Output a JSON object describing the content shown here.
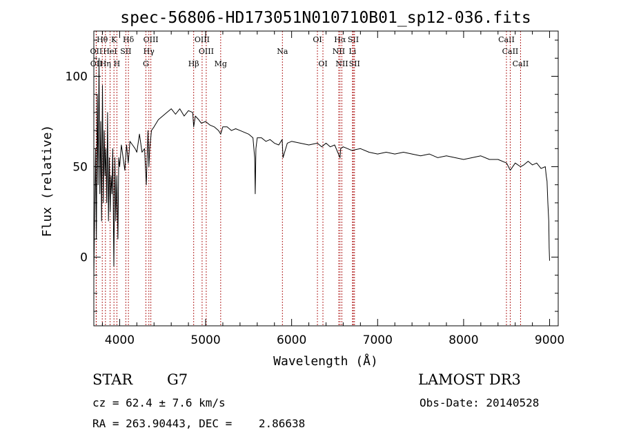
{
  "chart_data": {
    "type": "line",
    "title": "spec-56806-HD173051N010710B01_sp12-036.fits",
    "xlabel": "Wavelength (Å)",
    "ylabel": "Flux (relative)",
    "xlim": [
      3700,
      9100
    ],
    "ylim": [
      -38,
      125
    ],
    "x_ticks": [
      4000,
      5000,
      6000,
      7000,
      8000,
      9000
    ],
    "y_ticks": [
      0,
      50,
      100
    ],
    "x_tick_labels": [
      "4000",
      "5000",
      "6000",
      "7000",
      "8000",
      "9000"
    ],
    "y_tick_labels": [
      "0",
      "50",
      "100"
    ],
    "series": [
      {
        "name": "flux",
        "color": "#000000",
        "x": [
          3700,
          3720,
          3730,
          3740,
          3750,
          3760,
          3770,
          3780,
          3790,
          3800,
          3810,
          3820,
          3830,
          3840,
          3850,
          3860,
          3870,
          3880,
          3890,
          3900,
          3910,
          3920,
          3933,
          3945,
          3955,
          3968,
          3980,
          3990,
          4000,
          4020,
          4040,
          4060,
          4080,
          4100,
          4120,
          4150,
          4180,
          4200,
          4230,
          4260,
          4290,
          4310,
          4330,
          4340,
          4350,
          4370,
          4400,
          4450,
          4500,
          4550,
          4600,
          4650,
          4700,
          4750,
          4800,
          4850,
          4861,
          4880,
          4920,
          4950,
          5000,
          5050,
          5100,
          5150,
          5175,
          5200,
          5250,
          5300,
          5350,
          5400,
          5450,
          5500,
          5550,
          5570,
          5577,
          5585,
          5600,
          5650,
          5700,
          5750,
          5800,
          5850,
          5890,
          5900,
          5950,
          6000,
          6100,
          6200,
          6300,
          6350,
          6400,
          6450,
          6500,
          6563,
          6570,
          6600,
          6650,
          6700,
          6800,
          6900,
          7000,
          7100,
          7200,
          7300,
          7400,
          7500,
          7600,
          7700,
          7800,
          7900,
          8000,
          8100,
          8200,
          8300,
          8400,
          8500,
          8542,
          8600,
          8662,
          8700,
          8750,
          8800,
          8850,
          8900,
          8950,
          8960,
          8970,
          8980,
          8990,
          8995,
          9000
        ],
        "values": [
          -10,
          60,
          10,
          90,
          40,
          110,
          35,
          75,
          20,
          95,
          30,
          70,
          45,
          60,
          30,
          80,
          20,
          55,
          25,
          45,
          35,
          60,
          -5,
          55,
          20,
          45,
          10,
          55,
          50,
          62,
          55,
          48,
          62,
          52,
          64,
          62,
          60,
          58,
          68,
          58,
          60,
          40,
          70,
          50,
          60,
          70,
          72,
          76,
          78,
          80,
          82,
          79,
          82,
          78,
          81,
          80,
          72,
          78,
          76,
          74,
          75,
          73,
          72,
          70,
          68,
          72,
          72,
          70,
          71,
          70,
          69,
          68,
          66,
          55,
          35,
          60,
          66,
          66,
          64,
          65,
          63,
          62,
          65,
          55,
          63,
          64,
          63,
          62,
          63,
          61,
          63,
          61,
          62,
          55,
          60,
          61,
          60,
          59,
          60,
          58,
          57,
          58,
          57,
          58,
          57,
          56,
          57,
          55,
          56,
          55,
          54,
          55,
          56,
          54,
          54,
          52,
          48,
          52,
          50,
          51,
          53,
          51,
          52,
          49,
          50,
          45,
          42,
          30,
          20,
          5,
          -2
        ]
      }
    ],
    "spectral_lines": [
      {
        "label": "Hθ",
        "x": 3798,
        "row": 0
      },
      {
        "label": "K",
        "x": 3934,
        "row": 0
      },
      {
        "label": "Hδ",
        "x": 4102,
        "row": 0
      },
      {
        "label": "OIII",
        "x": 4363,
        "row": 0
      },
      {
        "label": "OIII",
        "x": 4959,
        "row": 0
      },
      {
        "label": "OI",
        "x": 6300,
        "row": 0
      },
      {
        "label": "Hα",
        "x": 6563,
        "row": 0
      },
      {
        "label": "SII",
        "x": 6717,
        "row": 0
      },
      {
        "label": "CaII",
        "x": 8498,
        "row": 0
      },
      {
        "label": "OII",
        "x": 3727,
        "row": 1
      },
      {
        "label": "HeI",
        "x": 3889,
        "row": 1
      },
      {
        "label": "SII",
        "x": 4072,
        "row": 1
      },
      {
        "label": "Hγ",
        "x": 4340,
        "row": 1
      },
      {
        "label": "OIII",
        "x": 5007,
        "row": 1
      },
      {
        "label": "Na",
        "x": 5893,
        "row": 1
      },
      {
        "label": "NII",
        "x": 6548,
        "row": 1
      },
      {
        "label": "Li",
        "x": 6708,
        "row": 1
      },
      {
        "label": "CaII",
        "x": 8542,
        "row": 1
      },
      {
        "label": "OII",
        "x": 3729,
        "row": 2
      },
      {
        "label": "Hη",
        "x": 3835,
        "row": 2
      },
      {
        "label": "H",
        "x": 3968,
        "row": 2
      },
      {
        "label": "G",
        "x": 4305,
        "row": 2
      },
      {
        "label": "Hβ",
        "x": 4861,
        "row": 2
      },
      {
        "label": "Mg",
        "x": 5175,
        "row": 2
      },
      {
        "label": "OI",
        "x": 6364,
        "row": 2
      },
      {
        "label": "NII",
        "x": 6584,
        "row": 2
      },
      {
        "label": "SII",
        "x": 6731,
        "row": 2
      },
      {
        "label": "CaII",
        "x": 8662,
        "row": 2
      }
    ],
    "grid": false
  },
  "info": {
    "object_class": "STAR",
    "subclass": "G7",
    "survey": "LAMOST DR3",
    "redshift_text": "cz = 62.4 ± 7.6 km/s",
    "obs_date_text": "Obs-Date: 20140528",
    "coords_text": "RA = 263.90443, DEC =    2.86638"
  },
  "colors": {
    "line_marker": "#b22222",
    "spectrum": "#000000"
  }
}
